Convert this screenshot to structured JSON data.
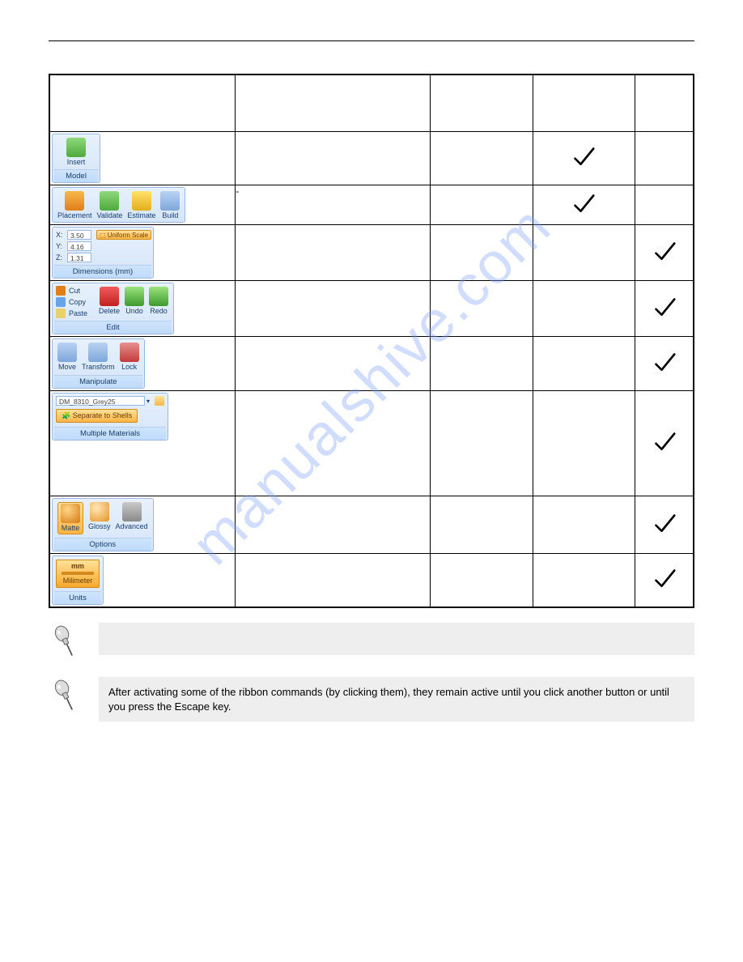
{
  "watermark": "manualshive.com",
  "rows": [
    {
      "group_label": "Model",
      "items": [
        {
          "label": "Insert",
          "ico_bg": "linear-gradient(#8fd97b,#4faa3c)",
          "ico_accent": "#f4c430"
        }
      ],
      "col_b": "",
      "checks": [
        false,
        false,
        true,
        false
      ]
    },
    {
      "group_label": "",
      "items": [
        {
          "label": "Placement",
          "ico_bg": "linear-gradient(#f7b84a,#e07e1a)",
          "ico_accent": "#3c8c2e"
        },
        {
          "label": "Validate",
          "ico_bg": "linear-gradient(#8fd97b,#4faa3c)",
          "ico_accent": "#0a7a0a"
        },
        {
          "label": "Estimate",
          "ico_bg": "linear-gradient(#ffe26a,#e2ae1b)",
          "ico_accent": "#1b8c1b"
        },
        {
          "label": "Build",
          "ico_bg": "linear-gradient(#b9d3f3,#7da7db)",
          "ico_accent": "#355f9d"
        }
      ],
      "col_b": "-",
      "checks": [
        false,
        false,
        true,
        false
      ]
    },
    {
      "type": "dimensions",
      "group_label": "Dimensions (mm)",
      "fields": [
        {
          "k": "X:",
          "v": "3.50"
        },
        {
          "k": "Y:",
          "v": "4.16"
        },
        {
          "k": "Z:",
          "v": "1.31"
        }
      ],
      "button": "Uniform Scale",
      "col_b": "",
      "checks": [
        false,
        false,
        false,
        true
      ]
    },
    {
      "type": "edit",
      "group_label": "Edit",
      "left_rows": [
        {
          "label": "Cut",
          "color": "#e07e1a"
        },
        {
          "label": "Copy",
          "color": "#6aa2e8"
        },
        {
          "label": "Paste",
          "color": "#e8d06a"
        }
      ],
      "items": [
        {
          "label": "Delete",
          "ico_bg": "linear-gradient(#f15b5b,#c22020)"
        },
        {
          "label": "Undo",
          "ico_bg": "linear-gradient(#9be37d,#3c9a2c)"
        },
        {
          "label": "Redo",
          "ico_bg": "linear-gradient(#9be37d,#3c9a2c)"
        }
      ],
      "col_b": "",
      "checks": [
        false,
        false,
        false,
        true
      ]
    },
    {
      "group_label": "Manipulate",
      "items": [
        {
          "label": "Move",
          "ico_bg": "linear-gradient(#b9d3f3,#7da7db)"
        },
        {
          "label": "Transform",
          "ico_bg": "linear-gradient(#b9d3f3,#7da7db)"
        },
        {
          "label": "Lock",
          "ico_bg": "linear-gradient(#e99090,#c23a3a)"
        }
      ],
      "col_b": "",
      "checks": [
        false,
        false,
        false,
        true
      ]
    },
    {
      "type": "materials",
      "group_label": "Multiple Materials",
      "dropdown": "DM_8310_Grey25",
      "button": "Separate to Shells",
      "col_b": "",
      "checks": [
        false,
        false,
        false,
        true
      ],
      "tall": true
    },
    {
      "group_label": "Options",
      "items": [
        {
          "label": "Matte",
          "ico_bg": "radial-gradient(circle at 35% 30%, #ffd589, #d67a0f)"
        },
        {
          "label": "Glossy",
          "ico_bg": "radial-gradient(circle at 35% 30%, #ffe7b7, #e59425)"
        },
        {
          "label": "Advanced",
          "ico_bg": "linear-gradient(#c9c9c9,#8a8a8a)"
        }
      ],
      "special_first_sel": true,
      "col_b": "",
      "checks": [
        false,
        false,
        false,
        true
      ]
    },
    {
      "type": "units",
      "group_label": "Units",
      "top": "mm",
      "mid": "Milimeter",
      "col_b": "",
      "checks": [
        false,
        false,
        false,
        true
      ]
    }
  ],
  "notes": [
    "",
    "After activating some of the ribbon commands (by clicking them), they remain active until you click another button or until you press the Escape key."
  ]
}
